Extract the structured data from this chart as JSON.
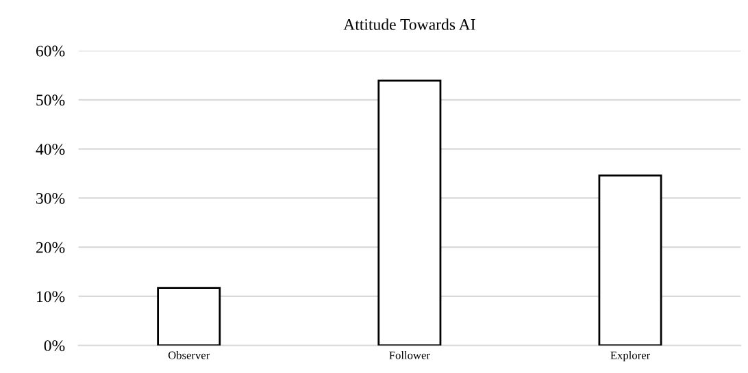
{
  "chart_data": {
    "type": "bar",
    "title": "Attitude Towards AI",
    "categories": [
      "Observer",
      "Follower",
      "Explorer"
    ],
    "values": [
      11.7,
      53.9,
      34.6
    ],
    "color": "#ffffff",
    "ylim": [
      0,
      60
    ],
    "yticks": [
      {
        "value": 0,
        "label": "0%"
      },
      {
        "value": 10,
        "label": "10%"
      },
      {
        "value": 20,
        "label": "20%"
      },
      {
        "value": 30,
        "label": "30%"
      },
      {
        "value": 40,
        "label": "40%"
      },
      {
        "value": 50,
        "label": "50%"
      },
      {
        "value": 60,
        "label": "60%"
      }
    ],
    "grid": "y"
  }
}
